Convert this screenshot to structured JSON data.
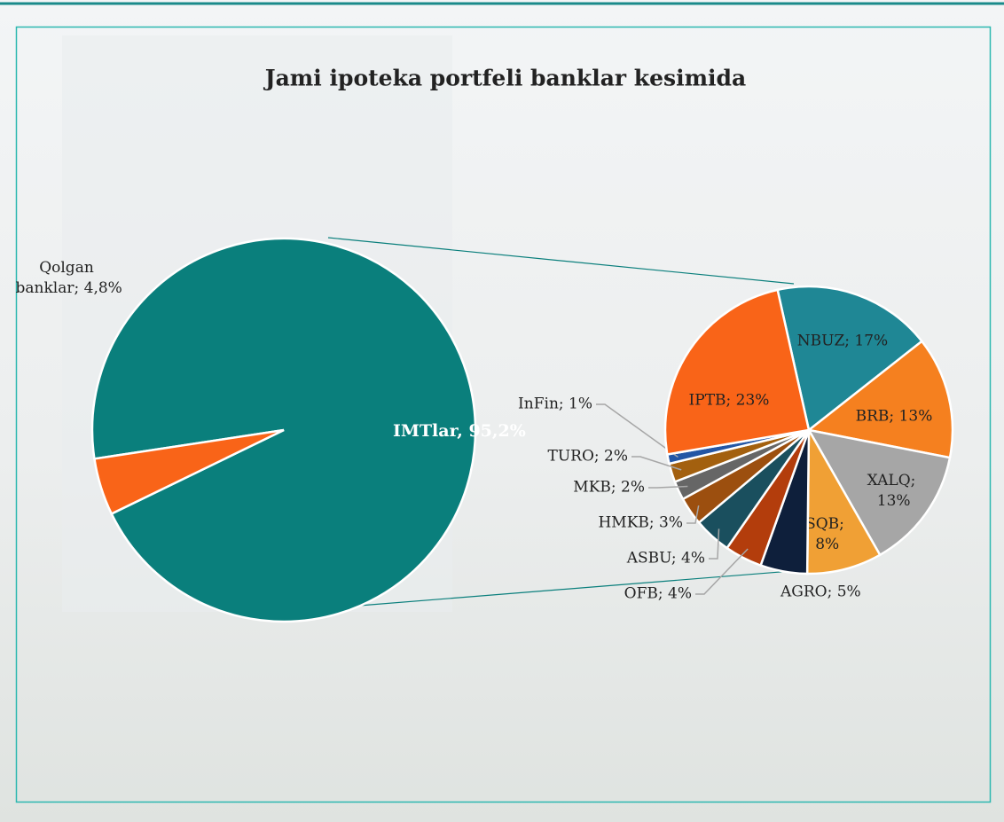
{
  "chart_data": [
    {
      "type": "pie",
      "title": "Jami ipoteka portfeli banklar kesimida",
      "values": [
        95.2,
        4.8
      ],
      "value_labels": [
        "IMTlar, 95,2%",
        "Qolgan banklar; 4,8%"
      ],
      "colors": [
        "#0a7f7c",
        "#f96418"
      ]
    },
    {
      "type": "pie",
      "values": [
        17,
        13,
        13,
        8,
        5,
        4,
        4,
        3,
        2,
        2,
        1,
        23
      ],
      "value_labels": [
        "NBUZ; 17%",
        "BRB; 13%",
        "XALQ; 13%",
        "SQB; 8%",
        "AGRO; 5%",
        "OFB; 4%",
        "ASBU; 4%",
        "HMKB; 3%",
        "MKB; 2%",
        "TURO; 2%",
        "InFin; 1%",
        "IPTB; 23%"
      ],
      "colors": [
        "#1f8795",
        "#f5801f",
        "#a6a6a6",
        "#f0a035",
        "#0e1f3b",
        "#b33d0c",
        "#1a4f5e",
        "#9c4f0f",
        "#666666",
        "#a3600f",
        "#2356a5",
        "#f96418"
      ]
    }
  ]
}
